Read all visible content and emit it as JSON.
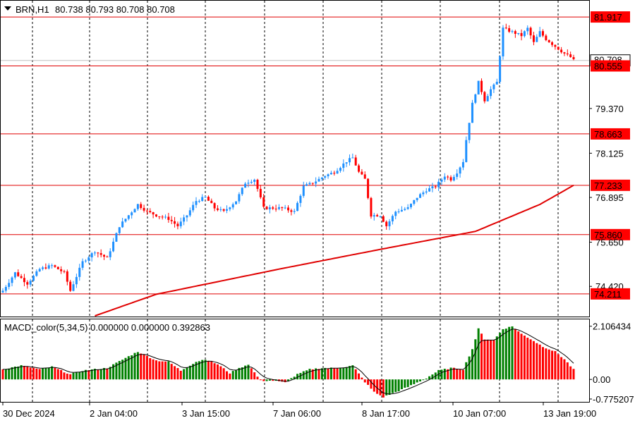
{
  "header": {
    "symbol_label": "BRN,H1",
    "ohlc_label": "80.738 80.793 80.708 80.708"
  },
  "macd": {
    "label": "MACD_color(5,34,5) 0.000000 0.000000 0.392863"
  },
  "colors": {
    "bull": "#1e90ff",
    "bear": "#ff0000",
    "ma_line": "#e00000",
    "level_line": "#e00000",
    "macd_up": "#008000",
    "macd_down": "#ff0000",
    "signal": "#000000",
    "grid": "#000000"
  },
  "chart_data": [
    {
      "type": "candlestick",
      "symbol": "BRN",
      "timeframe": "H1",
      "ylim": [
        73.6,
        82.35
      ],
      "y_ticks": [
        "81.917",
        "80.708",
        "80.555",
        "79.370",
        "78.663",
        "78.125",
        "77.233",
        "76.895",
        "75.860",
        "75.650",
        "74.420",
        "74.211"
      ],
      "x_ticks": [
        "30 Dec 2024",
        "2 Jan 04:00",
        "3 Jan 15:00",
        "7 Jan 06:00",
        "8 Jan 17:00",
        "10 Jan 07:00",
        "13 Jan 19:00"
      ],
      "x_tick_bar_index": [
        0,
        30,
        60,
        90,
        120,
        150,
        180
      ],
      "horizontal_levels": [
        81.917,
        80.555,
        78.663,
        77.233,
        75.86,
        74.211
      ],
      "current_price": 80.708,
      "anchor_closes": [
        [
          0,
          74.3
        ],
        [
          4,
          74.8
        ],
        [
          8,
          74.5
        ],
        [
          12,
          74.9
        ],
        [
          16,
          75.0
        ],
        [
          20,
          74.8
        ],
        [
          22,
          74.3
        ],
        [
          26,
          75.1
        ],
        [
          30,
          75.4
        ],
        [
          34,
          75.2
        ],
        [
          38,
          76.1
        ],
        [
          40,
          76.3
        ],
        [
          44,
          76.7
        ],
        [
          47,
          76.5
        ],
        [
          50,
          76.4
        ],
        [
          54,
          76.3
        ],
        [
          57,
          76.1
        ],
        [
          60,
          76.4
        ],
        [
          63,
          76.8
        ],
        [
          66,
          76.9
        ],
        [
          69,
          76.6
        ],
        [
          72,
          76.5
        ],
        [
          76,
          76.8
        ],
        [
          79,
          77.3
        ],
        [
          82,
          77.4
        ],
        [
          85,
          76.6
        ],
        [
          88,
          76.6
        ],
        [
          91,
          76.6
        ],
        [
          95,
          76.5
        ],
        [
          98,
          77.2
        ],
        [
          101,
          77.3
        ],
        [
          105,
          77.5
        ],
        [
          108,
          77.6
        ],
        [
          112,
          77.9
        ],
        [
          114,
          78.0
        ],
        [
          116,
          77.6
        ],
        [
          118,
          77.4
        ],
        [
          120,
          76.4
        ],
        [
          123,
          76.4
        ],
        [
          125,
          76.1
        ],
        [
          128,
          76.5
        ],
        [
          132,
          76.6
        ],
        [
          135,
          76.9
        ],
        [
          138,
          77.1
        ],
        [
          141,
          77.2
        ],
        [
          144,
          77.5
        ],
        [
          146,
          77.4
        ],
        [
          148,
          77.6
        ],
        [
          150,
          77.9
        ],
        [
          151,
          78.5
        ],
        [
          153,
          79.5
        ],
        [
          155,
          80.1
        ],
        [
          157,
          79.6
        ],
        [
          159,
          79.9
        ],
        [
          161,
          80.1
        ],
        [
          163,
          81.6
        ],
        [
          166,
          81.5
        ],
        [
          169,
          81.4
        ],
        [
          171,
          81.6
        ],
        [
          173,
          81.2
        ],
        [
          175,
          81.5
        ],
        [
          177,
          81.3
        ],
        [
          180,
          81.1
        ],
        [
          183,
          80.9
        ],
        [
          185,
          80.8
        ],
        [
          186,
          80.708
        ]
      ],
      "ma_line": [
        [
          0,
          72.7
        ],
        [
          50,
          74.2
        ],
        [
          90,
          74.9
        ],
        [
          123,
          75.45
        ],
        [
          154,
          75.95
        ],
        [
          175,
          76.7
        ],
        [
          186,
          77.233
        ]
      ]
    },
    {
      "type": "histogram",
      "title": "MACD_color(5,34,5) 0.000000 0.000000 0.392863",
      "ylim": [
        -0.86,
        2.35
      ],
      "y_ticks": [
        "2.106434",
        "0.00",
        "-0.775207"
      ],
      "anchors": [
        [
          0,
          0.4
        ],
        [
          6,
          0.55
        ],
        [
          12,
          0.4
        ],
        [
          16,
          0.5
        ],
        [
          22,
          0.2
        ],
        [
          26,
          0.35
        ],
        [
          30,
          0.4
        ],
        [
          34,
          0.45
        ],
        [
          40,
          0.85
        ],
        [
          44,
          1.1
        ],
        [
          50,
          0.75
        ],
        [
          54,
          0.7
        ],
        [
          58,
          0.35
        ],
        [
          63,
          0.7
        ],
        [
          66,
          0.8
        ],
        [
          70,
          0.6
        ],
        [
          74,
          0.25
        ],
        [
          78,
          0.5
        ],
        [
          80,
          0.6
        ],
        [
          84,
          -0.05
        ],
        [
          88,
          -0.05
        ],
        [
          92,
          -0.12
        ],
        [
          96,
          0.2
        ],
        [
          100,
          0.4
        ],
        [
          104,
          0.45
        ],
        [
          108,
          0.45
        ],
        [
          112,
          0.5
        ],
        [
          114,
          0.55
        ],
        [
          118,
          -0.1
        ],
        [
          121,
          -0.5
        ],
        [
          124,
          -0.7
        ],
        [
          127,
          -0.55
        ],
        [
          132,
          -0.3
        ],
        [
          138,
          0.05
        ],
        [
          142,
          0.35
        ],
        [
          146,
          0.45
        ],
        [
          150,
          0.4
        ],
        [
          153,
          1.2
        ],
        [
          155,
          2.0
        ],
        [
          157,
          1.6
        ],
        [
          160,
          1.55
        ],
        [
          163,
          2.0
        ],
        [
          166,
          2.1
        ],
        [
          169,
          1.8
        ],
        [
          172,
          1.6
        ],
        [
          176,
          1.3
        ],
        [
          180,
          1.1
        ],
        [
          183,
          0.8
        ],
        [
          186,
          0.392863
        ]
      ]
    }
  ]
}
